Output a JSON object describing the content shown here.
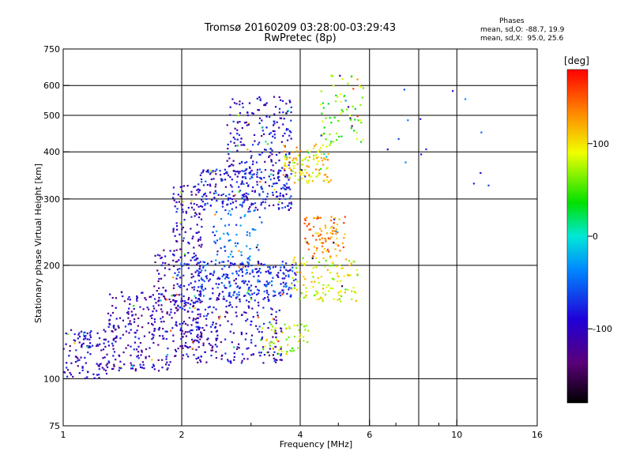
{
  "header": {
    "title_line1": "Tromsø 20160209 03:28:00-03:29:43",
    "title_line2": "RwPretec (8p)"
  },
  "stats": {
    "heading": "Phases",
    "o_line": "mean, sd,O: -88.7, 19.9",
    "x_line": "mean, sd,X:  95.0, 25.6"
  },
  "colorbar": {
    "unit": "[deg]",
    "ticks": [
      {
        "value": 100,
        "label": "100"
      },
      {
        "value": 0,
        "label": "0"
      },
      {
        "value": -100,
        "label": "-100"
      }
    ],
    "range": [
      -180,
      180
    ]
  },
  "chart_data": {
    "type": "scatter",
    "title": "Tromsø 20160209 03:28:00-03:29:43",
    "subtitle": "RwPretec (8p)",
    "xlabel": "Frequency [MHz]",
    "ylabel": "Stationary phase Virtual Height [km]",
    "xscale": "log",
    "yscale": "log",
    "xlim": [
      1,
      16
    ],
    "ylim": [
      75,
      750
    ],
    "xticks": [
      {
        "value": 1,
        "label": "1"
      },
      {
        "value": 2,
        "label": "2"
      },
      {
        "value": 4,
        "label": "4"
      },
      {
        "value": 6,
        "label": "6"
      },
      {
        "value": 10,
        "label": "10"
      },
      {
        "value": 16,
        "label": "16"
      }
    ],
    "x_minor_ticks": [
      3,
      5,
      7,
      8,
      9
    ],
    "yticks": [
      {
        "value": 75,
        "label": "75"
      },
      {
        "value": 100,
        "label": "100"
      },
      {
        "value": 200,
        "label": "200"
      },
      {
        "value": 300,
        "label": "300"
      },
      {
        "value": 400,
        "label": "400"
      },
      {
        "value": 500,
        "label": "500"
      },
      {
        "value": 600,
        "label": "600"
      },
      {
        "value": 750,
        "label": "750"
      }
    ],
    "grid": true,
    "gridlines_x": [
      2,
      4,
      6,
      8,
      10
    ],
    "gridlines_y": [
      100,
      200,
      300,
      400,
      500,
      600
    ],
    "color_scale": "phase [deg], black→purple→blue→cyan→green→yellow→red",
    "clusters": [
      {
        "x": [
          1.0,
          1.35
        ],
        "y": [
          100,
          135
        ],
        "phase": -100,
        "n": 120
      },
      {
        "x": [
          1.3,
          1.95
        ],
        "y": [
          105,
          170
        ],
        "phase": -105,
        "n": 230
      },
      {
        "x": [
          1.9,
          2.25
        ],
        "y": [
          120,
          330
        ],
        "phase": -100,
        "n": 220
      },
      {
        "x": [
          2.2,
          3.8
        ],
        "y": [
          280,
          360
        ],
        "phase": -85,
        "n": 260
      },
      {
        "x": [
          2.6,
          3.8
        ],
        "y": [
          340,
          560
        ],
        "phase": -95,
        "n": 200
      },
      {
        "x": [
          2.2,
          3.9
        ],
        "y": [
          165,
          205
        ],
        "phase": -70,
        "n": 260
      },
      {
        "x": [
          2.0,
          3.6
        ],
        "y": [
          110,
          165
        ],
        "phase": -100,
        "n": 260
      },
      {
        "x": [
          2.4,
          3.2
        ],
        "y": [
          200,
          280
        ],
        "phase": -50,
        "n": 70
      },
      {
        "x": [
          3.6,
          4.8
        ],
        "y": [
          330,
          420
        ],
        "phase": 105,
        "n": 120
      },
      {
        "x": [
          3.2,
          4.2
        ],
        "y": [
          115,
          140
        ],
        "phase": 80,
        "n": 60
      },
      {
        "x": [
          4.1,
          5.2
        ],
        "y": [
          210,
          270
        ],
        "phase": 130,
        "n": 90
      },
      {
        "x": [
          3.8,
          5.6
        ],
        "y": [
          160,
          210
        ],
        "phase": 85,
        "n": 120
      },
      {
        "x": [
          4.5,
          5.8
        ],
        "y": [
          420,
          640
        ],
        "phase": 60,
        "n": 70
      },
      {
        "x": [
          1.7,
          2.0
        ],
        "y": [
          160,
          220
        ],
        "phase": -110,
        "n": 50
      },
      {
        "x": [
          6.3,
          12.5
        ],
        "y": [
          300,
          640
        ],
        "phase": -60,
        "n": 14
      }
    ]
  }
}
